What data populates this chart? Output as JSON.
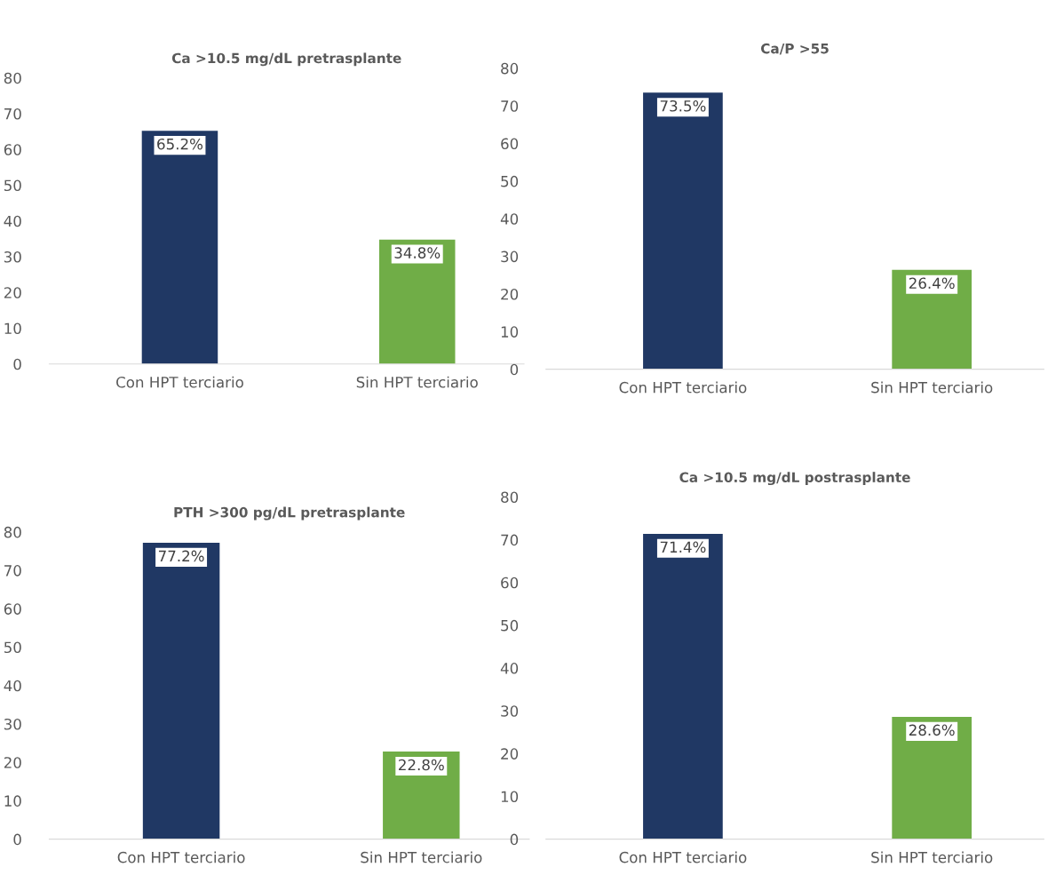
{
  "chart_data": [
    {
      "type": "bar",
      "title": "Ca >10.5 mg/dL pretrasplante",
      "categories": [
        "Con HPT terciario",
        "Sin HPT terciario"
      ],
      "values": [
        65.2,
        34.8
      ],
      "colors": [
        "#203864",
        "#70ad47"
      ],
      "value_labels": [
        "65.2%",
        "34.8%"
      ],
      "ylim": [
        0,
        80
      ],
      "yticks": [
        0,
        10,
        20,
        30,
        40,
        50,
        60,
        70,
        80
      ],
      "grid": false,
      "legend": false
    },
    {
      "type": "bar",
      "title": "Ca/P >55",
      "categories": [
        "Con HPT terciario",
        "Sin HPT terciario"
      ],
      "values": [
        73.5,
        26.4
      ],
      "colors": [
        "#203864",
        "#70ad47"
      ],
      "value_labels": [
        "73.5%",
        "26.4%"
      ],
      "ylim": [
        0,
        80
      ],
      "yticks": [
        0,
        10,
        20,
        30,
        40,
        50,
        60,
        70,
        80
      ],
      "grid": false,
      "legend": false
    },
    {
      "type": "bar",
      "title": "PTH >300 pg/dL pretrasplante",
      "categories": [
        "Con HPT terciario",
        "Sin HPT terciario"
      ],
      "values": [
        77.2,
        22.8
      ],
      "colors": [
        "#203864",
        "#70ad47"
      ],
      "value_labels": [
        "77.2%",
        "22.8%"
      ],
      "ylim": [
        0,
        80
      ],
      "yticks": [
        0,
        10,
        20,
        30,
        40,
        50,
        60,
        70,
        80
      ],
      "grid": false,
      "legend": false
    },
    {
      "type": "bar",
      "title": "Ca >10.5 mg/dL postrasplante",
      "categories": [
        "Con HPT terciario",
        "Sin HPT terciario"
      ],
      "values": [
        71.4,
        28.6
      ],
      "colors": [
        "#203864",
        "#70ad47"
      ],
      "value_labels": [
        "71.4%",
        "28.6%"
      ],
      "ylim": [
        0,
        80
      ],
      "yticks": [
        0,
        10,
        20,
        30,
        40,
        50,
        60,
        70,
        80
      ],
      "grid": false,
      "legend": false
    }
  ]
}
